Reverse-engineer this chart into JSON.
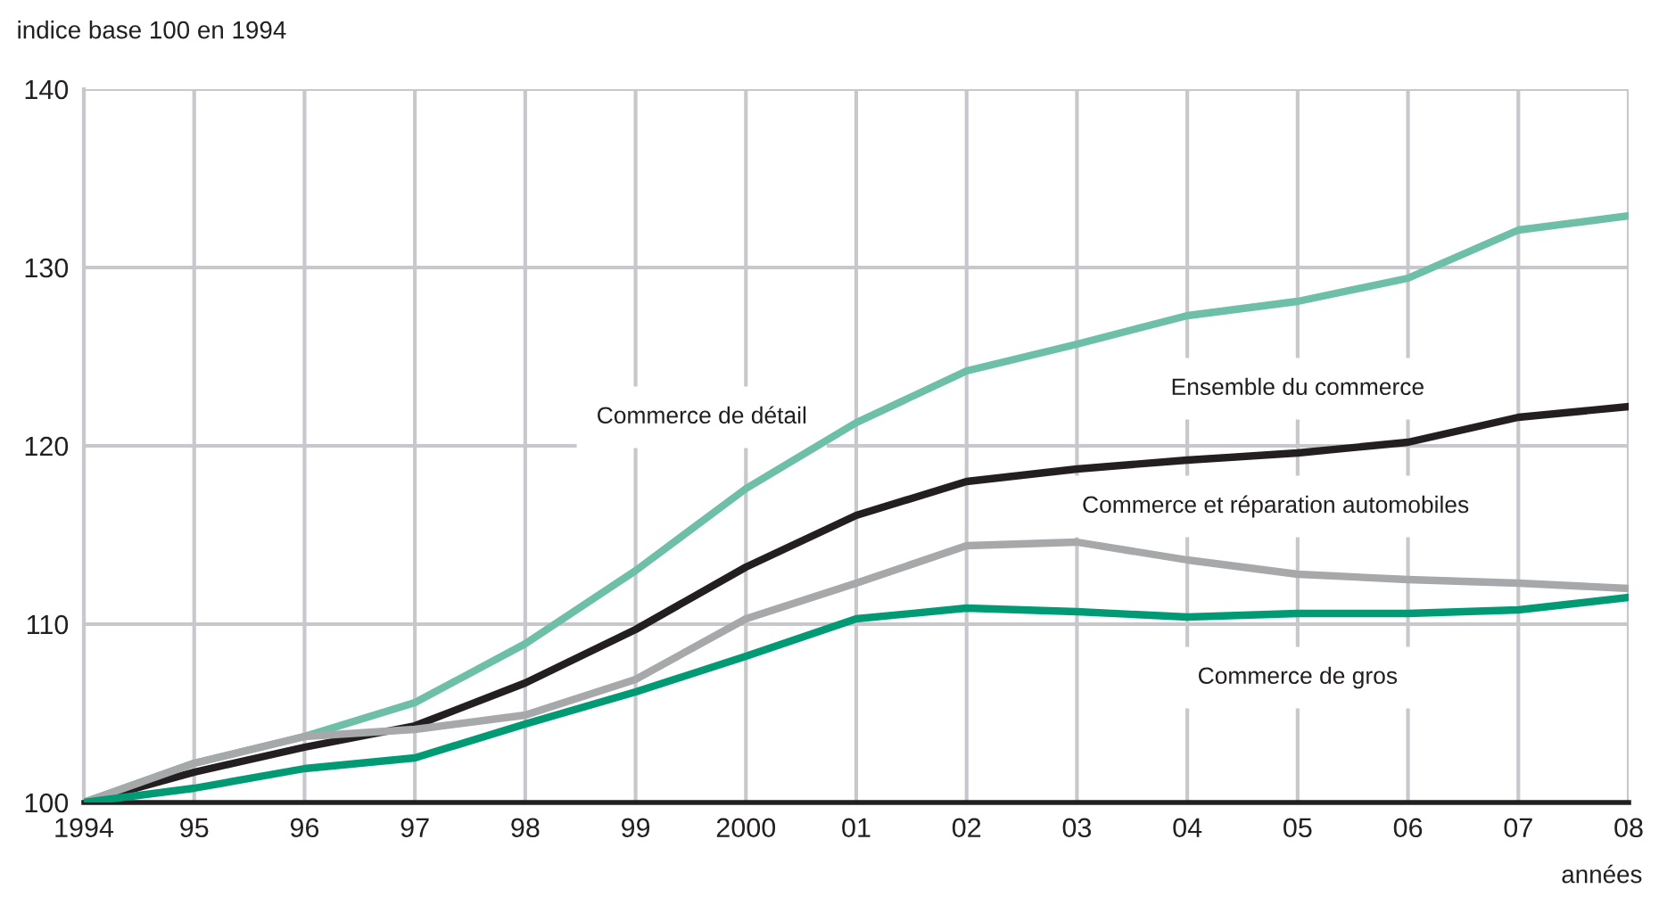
{
  "chart_data": {
    "type": "line",
    "ylabel": "indice base 100 en 1994",
    "xlabel": "années",
    "x": [
      1994,
      1995,
      1996,
      1997,
      1998,
      1999,
      2000,
      2001,
      2002,
      2003,
      2004,
      2005,
      2006,
      2007,
      2008
    ],
    "series": [
      {
        "name": "Commerce de détail",
        "color": "#6dbfa8",
        "values": [
          100,
          102.2,
          103.7,
          105.6,
          108.9,
          113.0,
          117.6,
          121.3,
          124.2,
          125.7,
          127.3,
          128.1,
          129.4,
          132.1,
          132.9
        ]
      },
      {
        "name": "Ensemble du commerce",
        "color": "#231f20",
        "values": [
          100,
          101.7,
          103.1,
          104.3,
          106.7,
          109.7,
          113.2,
          116.1,
          118.0,
          118.7,
          119.2,
          119.6,
          120.2,
          121.6,
          122.2
        ]
      },
      {
        "name": "Commerce et réparation automobiles",
        "color": "#a7a8aa",
        "values": [
          100,
          102.2,
          103.7,
          104.1,
          104.9,
          106.9,
          110.3,
          112.3,
          114.4,
          114.6,
          113.6,
          112.8,
          112.5,
          112.3,
          112.0
        ]
      },
      {
        "name": "Commerce de gros",
        "color": "#009a74",
        "values": [
          100,
          100.8,
          101.9,
          102.5,
          104.4,
          106.2,
          108.2,
          110.3,
          110.9,
          110.7,
          110.4,
          110.6,
          110.6,
          110.8,
          111.5
        ]
      }
    ],
    "xlim": [
      1994,
      2008
    ],
    "ylim": [
      100,
      140
    ],
    "xticks": [
      1994,
      {
        "value": 1995,
        "label": "95"
      },
      {
        "value": 1996,
        "label": "96"
      },
      {
        "value": 1997,
        "label": "97"
      },
      {
        "value": 1998,
        "label": "98"
      },
      {
        "value": 1999,
        "label": "99"
      },
      2000,
      {
        "value": 2001,
        "label": "01"
      },
      {
        "value": 2002,
        "label": "02"
      },
      {
        "value": 2003,
        "label": "03"
      },
      {
        "value": 2004,
        "label": "04"
      },
      {
        "value": 2005,
        "label": "05"
      },
      {
        "value": 2006,
        "label": "06"
      },
      {
        "value": 2007,
        "label": "07"
      },
      {
        "value": 2008,
        "label": "08"
      }
    ],
    "yticks": [
      100,
      110,
      120,
      130,
      140
    ],
    "grid": true,
    "legend": false,
    "marker": "none",
    "line_style": "solid"
  }
}
